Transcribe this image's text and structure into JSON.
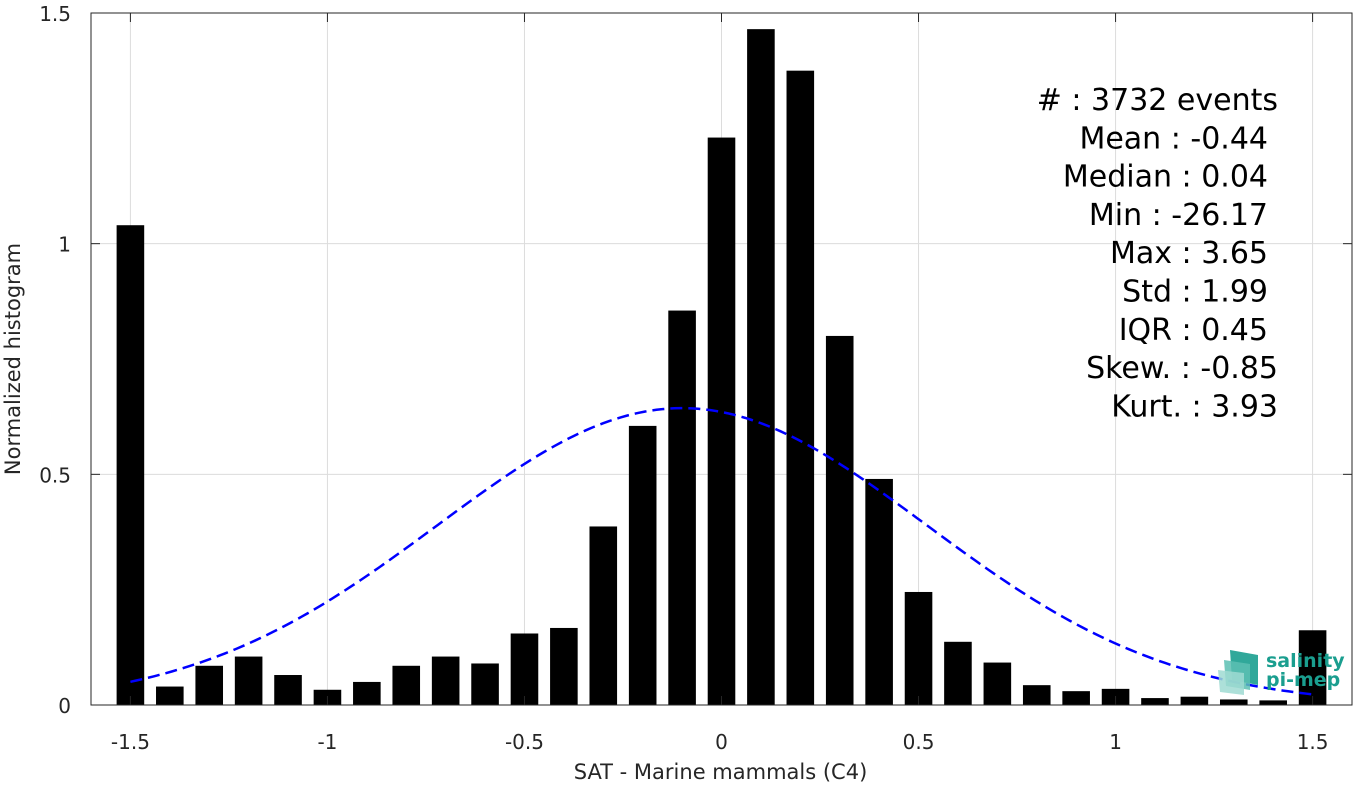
{
  "chart_data": {
    "type": "bar",
    "xlabel": "SAT - Marine mammals (C4)",
    "ylabel": "Normalized histogram",
    "xlim": [
      -1.6,
      1.6
    ],
    "ylim": [
      0,
      1.5
    ],
    "xticks": [
      -1.5,
      -1,
      -0.5,
      0,
      0.5,
      1,
      1.5
    ],
    "xtick_labels": [
      "-1.5",
      "-1",
      "-0.5",
      "0",
      "0.5",
      "1",
      "1.5"
    ],
    "yticks": [
      0,
      0.5,
      1,
      1.5
    ],
    "ytick_labels": [
      "0",
      "0.5",
      "1",
      "1.5"
    ],
    "grid": true,
    "bar_color": "#000000",
    "bin_width": 0.1,
    "bar_width_fraction": 0.7,
    "x": [
      -1.5,
      -1.4,
      -1.3,
      -1.2,
      -1.1,
      -1.0,
      -0.9,
      -0.8,
      -0.7,
      -0.6,
      -0.5,
      -0.4,
      -0.3,
      -0.2,
      -0.1,
      0.0,
      0.1,
      0.2,
      0.3,
      0.4,
      0.5,
      0.6,
      0.7,
      0.8,
      0.9,
      1.0,
      1.1,
      1.2,
      1.3,
      1.4,
      1.5
    ],
    "values": [
      1.04,
      0.04,
      0.085,
      0.105,
      0.065,
      0.033,
      0.05,
      0.085,
      0.105,
      0.09,
      0.155,
      0.167,
      0.387,
      0.605,
      0.855,
      1.23,
      1.465,
      1.375,
      0.8,
      0.49,
      0.245,
      0.137,
      0.092,
      0.043,
      0.03,
      0.035,
      0.015,
      0.018,
      0.012,
      0.01,
      0.162
    ],
    "fit": {
      "type": "normal",
      "mean": -0.1,
      "std": 0.62,
      "color": "#0000ff",
      "style": "dashed"
    },
    "annotations": [
      "#  : 3732 events",
      "Mean : -0.44",
      "Median : 0.04",
      "Min : -26.17",
      "Max : 3.65",
      "Std : 1.99",
      "IQR : 0.45",
      "Skew. : -0.85",
      "Kurt. : 3.93"
    ]
  },
  "logo": {
    "line1": "salinity",
    "line2": "pi-mep",
    "color": "#1a9e8f"
  }
}
